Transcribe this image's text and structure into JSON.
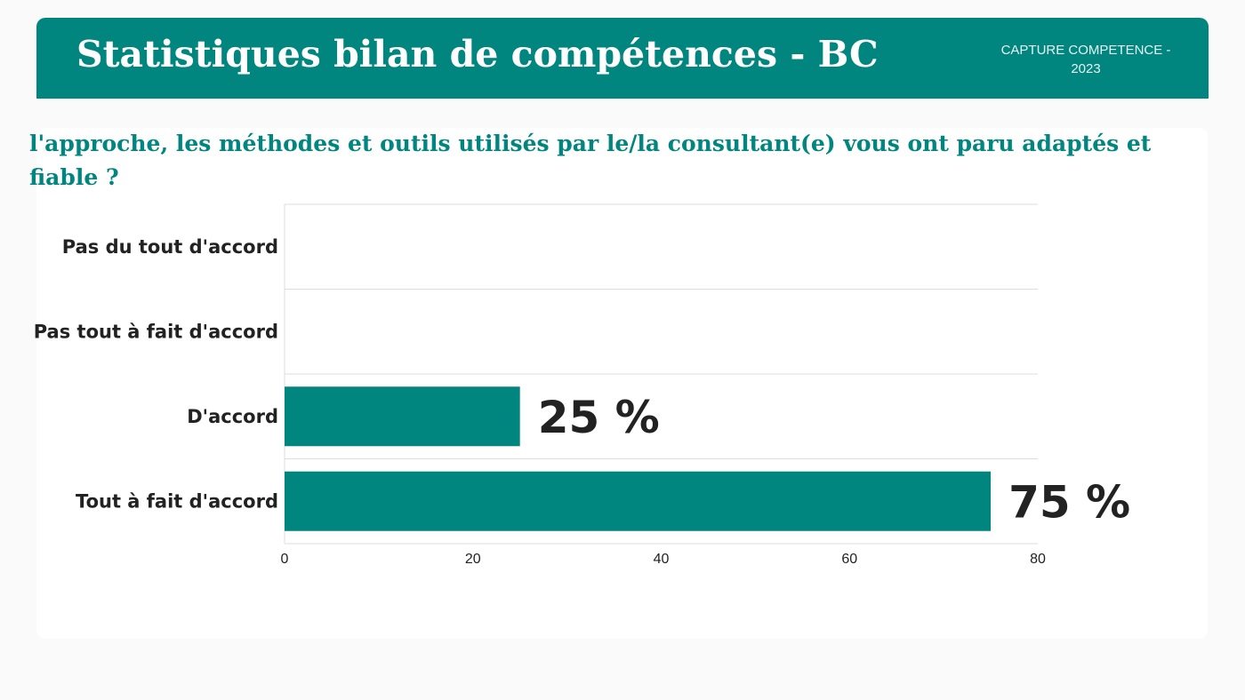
{
  "header": {
    "title": "Statistiques bilan de compétences - BC",
    "badge_line1": "CAPTURE COMPETENCE -",
    "badge_line2": "2023"
  },
  "question": "l'approche, les méthodes et outils utilisés par le/la consultant(e) vous ont paru adaptés et fiable ?",
  "colors": {
    "accent": "#00867f",
    "text": "#222222",
    "grid": "#dddddd"
  },
  "chart_data": {
    "type": "bar",
    "orientation": "horizontal",
    "categories": [
      "Pas du tout d'accord",
      "Pas tout à fait d'accord",
      "D'accord",
      "Tout à fait d'accord"
    ],
    "values": [
      0,
      0,
      25,
      75
    ],
    "data_labels": [
      "",
      "",
      "25 %",
      "75 %"
    ],
    "xlim": [
      0,
      80
    ],
    "x_ticks": [
      0,
      20,
      40,
      60,
      80
    ],
    "grid": true,
    "bar_color": "#00867f"
  }
}
